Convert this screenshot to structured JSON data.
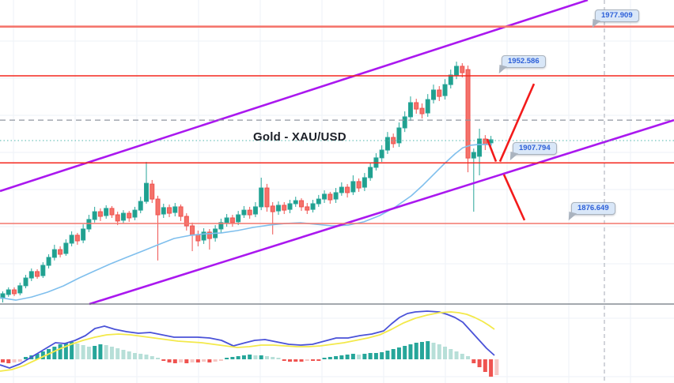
{
  "title": "Gold - XAU/USD",
  "chart_data": {
    "type": "candlestick",
    "title": "Gold - XAU/USD",
    "legend_position": "none",
    "grid": true,
    "price_axis": {
      "top": 1991.6,
      "bottom": 1835.2
    },
    "levels": [
      {
        "label": "1977.909",
        "price": 1977.909,
        "style": "zone"
      },
      {
        "label": "1952.586",
        "price": 1952.586,
        "style": "line"
      },
      {
        "label": "1907.794",
        "price": 1907.794,
        "style": "line"
      },
      {
        "label": "1876.649",
        "price": 1876.649,
        "style": "zone"
      }
    ],
    "reference_lines": {
      "gray_dashed_price": 1929.8,
      "teal_dotted_price": 1919.3
    },
    "channel": {
      "upper": [
        [
          0,
          1893.3
        ],
        [
          743,
          1991.6
        ]
      ],
      "lower": [
        [
          113,
          1835.2
        ],
        [
          852,
          1929.8
        ]
      ]
    },
    "candles": [
      [
        1838.1,
        1841.7,
        1836.0,
        1840.5
      ],
      [
        1840.1,
        1843.8,
        1838.9,
        1842.5
      ],
      [
        1842.5,
        1843.8,
        1839.3,
        1840.5
      ],
      [
        1840.9,
        1846.2,
        1839.7,
        1844.6
      ],
      [
        1844.6,
        1850.2,
        1843.3,
        1848.6
      ],
      [
        1848.6,
        1853.5,
        1847.0,
        1851.9
      ],
      [
        1851.9,
        1853.1,
        1848.2,
        1849.4
      ],
      [
        1849.8,
        1856.7,
        1848.6,
        1855.1
      ],
      [
        1855.1,
        1860.8,
        1853.5,
        1859.2
      ],
      [
        1859.2,
        1865.7,
        1857.6,
        1863.2
      ],
      [
        1863.2,
        1864.9,
        1859.2,
        1860.8
      ],
      [
        1861.2,
        1868.5,
        1860.0,
        1866.5
      ],
      [
        1866.5,
        1872.6,
        1864.9,
        1870.6
      ],
      [
        1870.6,
        1871.8,
        1865.7,
        1867.7
      ],
      [
        1868.1,
        1876.2,
        1866.5,
        1873.8
      ],
      [
        1873.8,
        1881.1,
        1872.2,
        1878.7
      ],
      [
        1878.7,
        1885.2,
        1877.1,
        1882.7
      ],
      [
        1882.7,
        1884.4,
        1877.9,
        1880.3
      ],
      [
        1880.7,
        1886.0,
        1879.1,
        1884.4
      ],
      [
        1884.4,
        1885.6,
        1879.5,
        1881.1
      ],
      [
        1881.1,
        1882.7,
        1875.8,
        1877.9
      ],
      [
        1878.3,
        1883.5,
        1876.6,
        1881.9
      ],
      [
        1881.9,
        1883.1,
        1877.5,
        1879.5
      ],
      [
        1879.9,
        1885.2,
        1878.3,
        1883.5
      ],
      [
        1883.5,
        1890.4,
        1881.9,
        1888.0
      ],
      [
        1888.0,
        1908.3,
        1886.8,
        1897.3
      ],
      [
        1896.9,
        1899.0,
        1887.2,
        1889.2
      ],
      [
        1889.2,
        1890.9,
        1857.6,
        1881.1
      ],
      [
        1881.5,
        1886.8,
        1879.5,
        1884.8
      ],
      [
        1884.8,
        1886.4,
        1879.9,
        1881.9
      ],
      [
        1882.3,
        1887.2,
        1880.3,
        1885.2
      ],
      [
        1885.2,
        1886.4,
        1877.9,
        1880.3
      ],
      [
        1880.3,
        1881.9,
        1873.0,
        1875.4
      ],
      [
        1875.4,
        1877.1,
        1862.4,
        1870.6
      ],
      [
        1871.0,
        1873.0,
        1864.9,
        1867.7
      ],
      [
        1868.1,
        1874.2,
        1866.1,
        1872.2
      ],
      [
        1872.2,
        1873.8,
        1863.2,
        1868.9
      ],
      [
        1869.3,
        1875.8,
        1867.3,
        1873.8
      ],
      [
        1873.8,
        1879.1,
        1871.8,
        1877.1
      ],
      [
        1877.1,
        1881.5,
        1875.0,
        1879.5
      ],
      [
        1879.5,
        1881.1,
        1875.0,
        1877.1
      ],
      [
        1877.5,
        1883.1,
        1875.8,
        1881.1
      ],
      [
        1881.1,
        1885.6,
        1879.5,
        1883.5
      ],
      [
        1883.5,
        1885.2,
        1879.1,
        1881.1
      ],
      [
        1881.5,
        1887.6,
        1879.9,
        1885.2
      ],
      [
        1885.2,
        1900.2,
        1883.5,
        1894.9
      ],
      [
        1894.9,
        1897.0,
        1882.7,
        1885.2
      ],
      [
        1885.6,
        1887.6,
        1871.0,
        1882.7
      ],
      [
        1883.1,
        1888.0,
        1881.1,
        1886.0
      ],
      [
        1886.0,
        1887.6,
        1881.5,
        1883.5
      ],
      [
        1883.9,
        1888.8,
        1881.9,
        1886.8
      ],
      [
        1886.8,
        1890.4,
        1885.2,
        1888.4
      ],
      [
        1888.4,
        1889.6,
        1883.1,
        1885.2
      ],
      [
        1885.2,
        1887.2,
        1881.5,
        1883.5
      ],
      [
        1883.9,
        1888.8,
        1882.3,
        1886.8
      ],
      [
        1886.8,
        1891.3,
        1885.2,
        1889.2
      ],
      [
        1889.2,
        1893.7,
        1887.2,
        1891.7
      ],
      [
        1891.7,
        1892.9,
        1886.8,
        1888.8
      ],
      [
        1889.2,
        1894.9,
        1887.2,
        1892.5
      ],
      [
        1892.5,
        1897.8,
        1890.9,
        1895.3
      ],
      [
        1895.3,
        1896.9,
        1890.0,
        1892.5
      ],
      [
        1892.9,
        1901.4,
        1891.3,
        1898.2
      ],
      [
        1898.2,
        1899.8,
        1892.9,
        1894.9
      ],
      [
        1895.3,
        1902.6,
        1893.3,
        1900.2
      ],
      [
        1900.2,
        1907.9,
        1898.6,
        1905.5
      ],
      [
        1905.5,
        1912.8,
        1903.9,
        1910.4
      ],
      [
        1910.4,
        1916.9,
        1908.3,
        1914.4
      ],
      [
        1914.4,
        1923.7,
        1912.4,
        1920.9
      ],
      [
        1920.9,
        1922.9,
        1915.6,
        1917.7
      ],
      [
        1918.1,
        1928.6,
        1916.0,
        1925.8
      ],
      [
        1925.8,
        1934.3,
        1923.7,
        1931.5
      ],
      [
        1931.5,
        1942.0,
        1929.4,
        1938.8
      ],
      [
        1938.8,
        1940.8,
        1933.1,
        1935.5
      ],
      [
        1935.9,
        1938.4,
        1930.7,
        1933.1
      ],
      [
        1933.5,
        1943.2,
        1931.5,
        1940.4
      ],
      [
        1940.4,
        1948.1,
        1938.4,
        1945.3
      ],
      [
        1945.3,
        1947.3,
        1939.6,
        1942.0
      ],
      [
        1942.4,
        1950.9,
        1940.4,
        1948.1
      ],
      [
        1948.1,
        1955.8,
        1946.1,
        1953.0
      ],
      [
        1953.0,
        1959.9,
        1950.9,
        1957.5
      ],
      [
        1957.5,
        1959.1,
        1951.8,
        1954.2
      ],
      [
        1955.8,
        1957.9,
        1903.0,
        1910.3
      ],
      [
        1910.3,
        1915.2,
        1882.7,
        1913.2
      ],
      [
        1911.2,
        1925.4,
        1901.4,
        1920.1
      ],
      [
        1920.1,
        1922.1,
        1914.4,
        1917.2
      ],
      [
        1918.1,
        1921.7,
        1916.0,
        1919.7
      ]
    ],
    "ma_line": [
      [
        0,
        1838.5
      ],
      [
        20,
        1837.2
      ],
      [
        40,
        1838.8
      ],
      [
        60,
        1841.3
      ],
      [
        80,
        1844.5
      ],
      [
        100,
        1848.6
      ],
      [
        120,
        1852.3
      ],
      [
        140,
        1855.9
      ],
      [
        160,
        1859.2
      ],
      [
        180,
        1862.4
      ],
      [
        200,
        1865.7
      ],
      [
        220,
        1868.9
      ],
      [
        240,
        1870.5
      ],
      [
        260,
        1871.3
      ],
      [
        280,
        1871.8
      ],
      [
        300,
        1873.0
      ],
      [
        320,
        1874.6
      ],
      [
        340,
        1875.8
      ],
      [
        360,
        1876.6
      ],
      [
        380,
        1877.0
      ],
      [
        400,
        1876.2
      ],
      [
        420,
        1875.4
      ],
      [
        440,
        1875.8
      ],
      [
        460,
        1877.5
      ],
      [
        480,
        1880.7
      ],
      [
        500,
        1885.2
      ],
      [
        520,
        1890.9
      ],
      [
        535,
        1896.5
      ],
      [
        550,
        1902.6
      ],
      [
        562,
        1907.5
      ],
      [
        575,
        1912.4
      ],
      [
        585,
        1915.6
      ],
      [
        595,
        1916.9
      ],
      [
        605,
        1917.3
      ],
      [
        622,
        1917.3
      ]
    ],
    "arrows": [
      [
        616,
        1920.0,
        627,
        1908.5
      ],
      [
        632,
        1908.5,
        675,
        1948.5
      ],
      [
        637,
        1901.8,
        663,
        1878.3
      ]
    ],
    "indicator": {
      "type": "macd",
      "histogram": [
        -4,
        -5,
        -4,
        -3,
        3,
        5,
        7,
        10,
        13,
        16,
        19,
        21,
        22,
        20,
        18,
        16,
        17,
        19,
        18,
        16,
        14,
        12,
        10,
        8,
        7,
        6,
        4,
        2,
        -2,
        -4,
        -5,
        -4,
        -5,
        -4,
        -4,
        -3,
        -4,
        -3,
        -2,
        2,
        3,
        4,
        5,
        6,
        5,
        5,
        4,
        3,
        2,
        -2,
        -3,
        -3,
        -3,
        -2,
        -2,
        -2,
        2,
        3,
        4,
        5,
        6,
        7,
        6,
        7,
        8,
        8,
        9,
        11,
        13,
        15,
        17,
        19,
        21,
        22,
        23,
        21,
        19,
        16,
        13,
        10,
        7,
        4,
        -5,
        -10,
        -16,
        -22,
        -20
      ],
      "macd_line": [
        [
          0,
          -7
        ],
        [
          12,
          -11
        ],
        [
          25,
          -6
        ],
        [
          40,
          3
        ],
        [
          55,
          12
        ],
        [
          70,
          21
        ],
        [
          82,
          20
        ],
        [
          95,
          24
        ],
        [
          108,
          30
        ],
        [
          120,
          39
        ],
        [
          132,
          42
        ],
        [
          145,
          38
        ],
        [
          160,
          35
        ],
        [
          175,
          33
        ],
        [
          190,
          34
        ],
        [
          205,
          31
        ],
        [
          220,
          28
        ],
        [
          235,
          28
        ],
        [
          250,
          28
        ],
        [
          265,
          27
        ],
        [
          280,
          24
        ],
        [
          295,
          17
        ],
        [
          310,
          21
        ],
        [
          322,
          24
        ],
        [
          335,
          25
        ],
        [
          350,
          22
        ],
        [
          365,
          19
        ],
        [
          380,
          18
        ],
        [
          395,
          19
        ],
        [
          410,
          23
        ],
        [
          425,
          27
        ],
        [
          440,
          27
        ],
        [
          455,
          30
        ],
        [
          470,
          32
        ],
        [
          485,
          36
        ],
        [
          495,
          45
        ],
        [
          505,
          53
        ],
        [
          515,
          58
        ],
        [
          525,
          60
        ],
        [
          540,
          61
        ],
        [
          555,
          60
        ],
        [
          565,
          57
        ],
        [
          575,
          53
        ],
        [
          585,
          47
        ],
        [
          595,
          36
        ],
        [
          605,
          25
        ],
        [
          615,
          14
        ],
        [
          625,
          5
        ]
      ],
      "signal_line": [
        [
          0,
          -15
        ],
        [
          15,
          -13
        ],
        [
          30,
          -8
        ],
        [
          45,
          -1
        ],
        [
          60,
          6
        ],
        [
          75,
          13
        ],
        [
          90,
          19
        ],
        [
          105,
          24
        ],
        [
          120,
          28
        ],
        [
          135,
          31
        ],
        [
          150,
          32
        ],
        [
          165,
          31
        ],
        [
          180,
          29
        ],
        [
          195,
          27
        ],
        [
          210,
          25
        ],
        [
          225,
          23
        ],
        [
          240,
          22
        ],
        [
          255,
          21
        ],
        [
          270,
          19
        ],
        [
          285,
          17
        ],
        [
          300,
          15
        ],
        [
          315,
          16
        ],
        [
          330,
          18
        ],
        [
          345,
          18
        ],
        [
          360,
          17
        ],
        [
          375,
          16
        ],
        [
          390,
          16
        ],
        [
          405,
          17
        ],
        [
          420,
          19
        ],
        [
          435,
          21
        ],
        [
          450,
          24
        ],
        [
          465,
          27
        ],
        [
          480,
          31
        ],
        [
          495,
          38
        ],
        [
          510,
          46
        ],
        [
          525,
          52
        ],
        [
          540,
          56
        ],
        [
          555,
          59
        ],
        [
          570,
          60
        ],
        [
          580,
          59
        ],
        [
          590,
          57
        ],
        [
          600,
          53
        ],
        [
          610,
          48
        ],
        [
          618,
          43
        ],
        [
          625,
          38
        ]
      ]
    },
    "colors": {
      "bull": "#21a08e",
      "bear": "#f4726a",
      "bull_wick": "#26a69a",
      "bear_wick": "#ef5350",
      "ma": "#7fbfed",
      "channel": "#aa18ef",
      "level_zone": "#f4766d",
      "level_line": "#f4271d",
      "macd_line": "#4a52d8",
      "signal_line": "#f3e94a",
      "hist_pos": "#26a69a",
      "hist_pos_light": "#b7dfd8",
      "hist_neg": "#ef5350",
      "hist_neg_light": "#f6c7c4",
      "arrow": "#f31b1b",
      "grid": "#eef2f7",
      "dashed_gray": "#9096a1",
      "dotted_teal": "#4db6ac",
      "separator": "#6e757e",
      "vline": "#b4b8c1",
      "label_bg": "#d9e7f8",
      "label_border": "#a9b3be",
      "label_text": "#2c5fd8",
      "title_color": "#1c1f27"
    }
  }
}
